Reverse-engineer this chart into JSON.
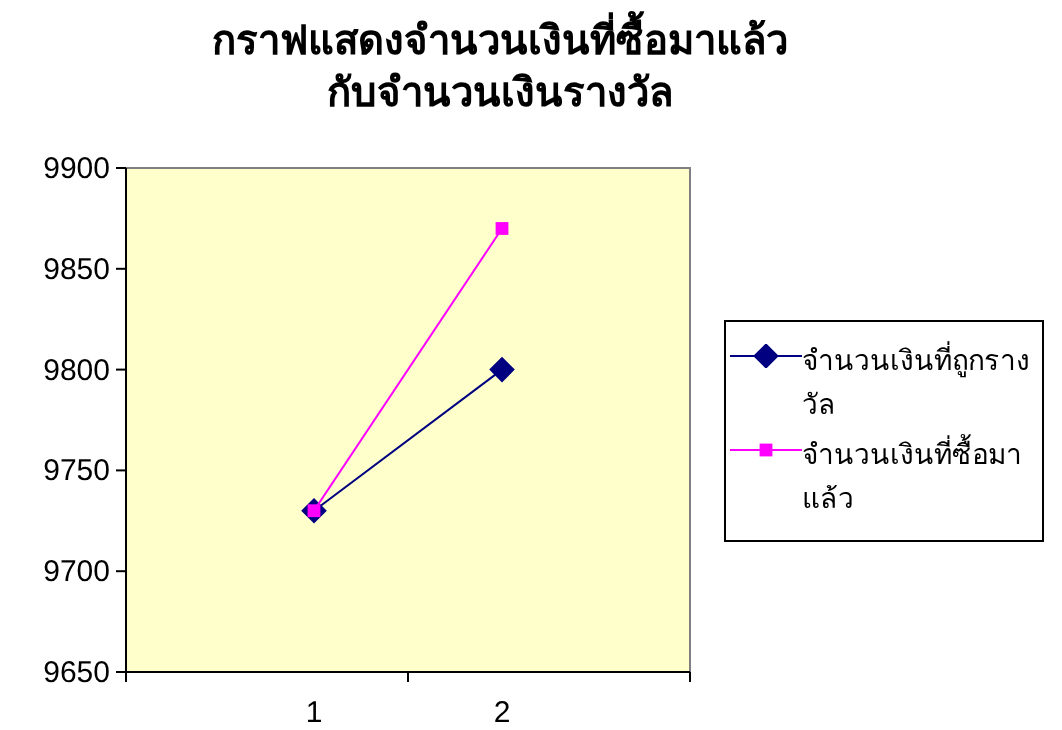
{
  "chart_data": {
    "type": "line",
    "title": "กราฟแสดงจำนวนเงินที่ซื้อมาแล้ว",
    "subtitle": "กับจำนวนเงินรางวัล",
    "categories": [
      "1",
      "2"
    ],
    "ylim": [
      9650,
      9900
    ],
    "yticks": [
      9650,
      9700,
      9750,
      9800,
      9850,
      9900
    ],
    "legend": "right",
    "series": [
      {
        "name": "จำนวนเงินที่ถูกรางวัล",
        "color": "#000080",
        "marker": "diamond",
        "values": [
          9730,
          9800
        ]
      },
      {
        "name": "จำนวนเงินที่ซื้อมาแล้ว",
        "color": "#ff00ff",
        "marker": "square",
        "values": [
          9730,
          9870
        ]
      }
    ]
  }
}
